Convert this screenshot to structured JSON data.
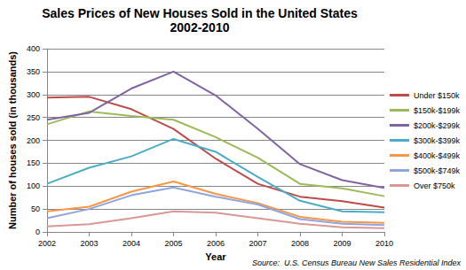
{
  "chart_data": {
    "type": "line",
    "title": "Sales Prices of New Houses Sold in the United States",
    "subtitle": "2002-2010",
    "x_label": "Year",
    "y_label": "Number of houses sold (in thousands)",
    "annotations": [
      "Source:  U.S. Census Bureau New Sales Residential Index"
    ],
    "categories": [
      "2002",
      "2003",
      "2004",
      "2005",
      "2006",
      "2007",
      "2008",
      "2009",
      "2010"
    ],
    "series": [
      {
        "name": "Under $150k",
        "color": "#be4b48",
        "values": [
          293,
          295,
          268,
          225,
          160,
          105,
          77,
          67,
          53
        ]
      },
      {
        "name": "$150k-$199k",
        "color": "#9bbb59",
        "values": [
          235,
          263,
          253,
          245,
          207,
          162,
          105,
          95,
          78
        ]
      },
      {
        "name": "$200k-$299k",
        "color": "#8064a2",
        "values": [
          245,
          260,
          313,
          350,
          298,
          225,
          148,
          113,
          96
        ]
      },
      {
        "name": "$300k-$399k",
        "color": "#4bacc6",
        "values": [
          105,
          140,
          165,
          203,
          175,
          120,
          68,
          45,
          43
        ]
      },
      {
        "name": "$400k-$499k",
        "color": "#f79646",
        "values": [
          45,
          55,
          88,
          110,
          83,
          63,
          33,
          22,
          20
        ]
      },
      {
        "name": "$500k-$749k",
        "color": "#8ea5dd",
        "values": [
          30,
          50,
          80,
          97,
          77,
          60,
          28,
          18,
          15
        ]
      },
      {
        "name": "Over $750k",
        "color": "#d99795",
        "values": [
          12,
          17,
          30,
          45,
          42,
          30,
          18,
          10,
          8
        ]
      }
    ],
    "ylim": [
      0,
      400
    ],
    "yticks": [
      0,
      50,
      100,
      150,
      200,
      250,
      300,
      350,
      400
    ],
    "grid": true,
    "legend": "right",
    "marker": "none"
  }
}
